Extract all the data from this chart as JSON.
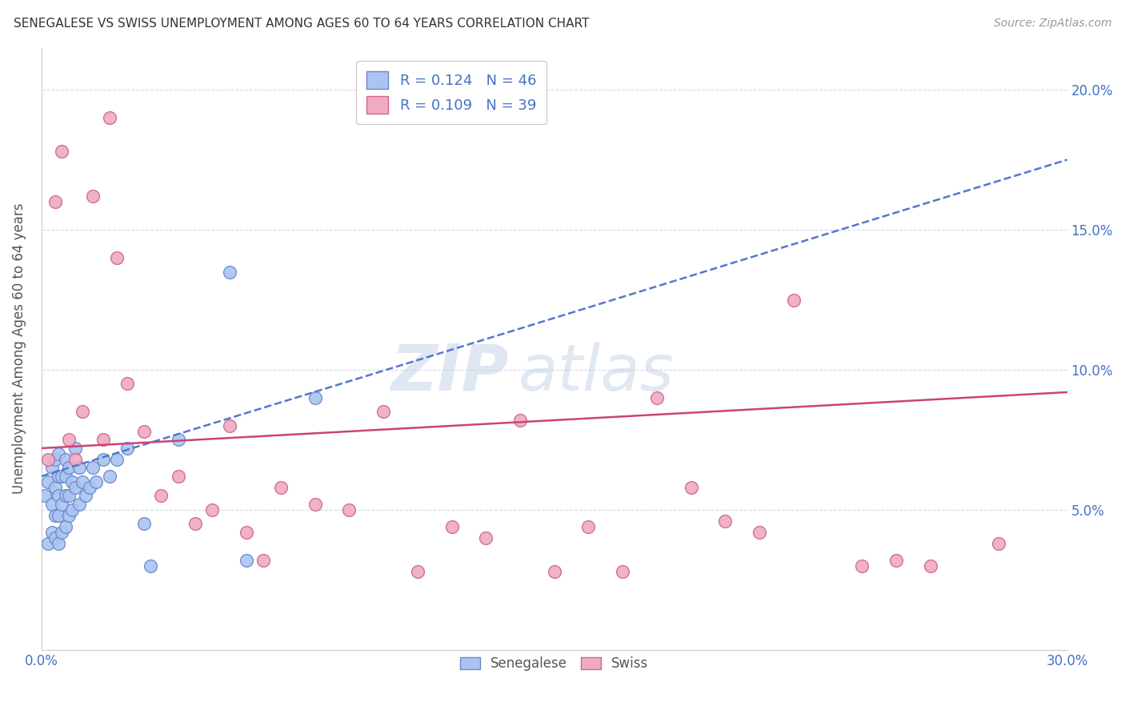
{
  "title": "SENEGALESE VS SWISS UNEMPLOYMENT AMONG AGES 60 TO 64 YEARS CORRELATION CHART",
  "source": "Source: ZipAtlas.com",
  "ylabel": "Unemployment Among Ages 60 to 64 years",
  "xlim": [
    0.0,
    0.3
  ],
  "ylim": [
    0.0,
    0.215
  ],
  "xticks": [
    0.0,
    0.05,
    0.1,
    0.15,
    0.2,
    0.25,
    0.3
  ],
  "yticks": [
    0.0,
    0.05,
    0.1,
    0.15,
    0.2
  ],
  "ytick_labels": [
    "",
    "5.0%",
    "10.0%",
    "15.0%",
    "20.0%"
  ],
  "xtick_labels": [
    "0.0%",
    "",
    "",
    "",
    "",
    "",
    "30.0%"
  ],
  "background_color": "#ffffff",
  "grid_color": "#d8d8e8",
  "senegalese_color": "#aac4f0",
  "swiss_color": "#f0aac4",
  "senegalese_edge": "#6888cc",
  "swiss_edge": "#cc6688",
  "trend_senegalese_color": "#5577cc",
  "trend_swiss_color": "#cc4477",
  "right_ytick_color": "#4472c4",
  "R_senegalese": 0.124,
  "N_senegalese": 46,
  "R_swiss": 0.109,
  "N_swiss": 39,
  "senegalese_x": [
    0.001,
    0.002,
    0.002,
    0.003,
    0.003,
    0.003,
    0.004,
    0.004,
    0.004,
    0.004,
    0.005,
    0.005,
    0.005,
    0.005,
    0.005,
    0.006,
    0.006,
    0.006,
    0.007,
    0.007,
    0.007,
    0.007,
    0.008,
    0.008,
    0.008,
    0.009,
    0.009,
    0.01,
    0.01,
    0.011,
    0.011,
    0.012,
    0.013,
    0.014,
    0.015,
    0.016,
    0.018,
    0.02,
    0.022,
    0.025,
    0.03,
    0.032,
    0.04,
    0.055,
    0.06,
    0.08
  ],
  "senegalese_y": [
    0.055,
    0.038,
    0.06,
    0.042,
    0.052,
    0.065,
    0.04,
    0.048,
    0.058,
    0.068,
    0.038,
    0.048,
    0.055,
    0.062,
    0.07,
    0.042,
    0.052,
    0.062,
    0.044,
    0.055,
    0.062,
    0.068,
    0.048,
    0.055,
    0.065,
    0.05,
    0.06,
    0.058,
    0.072,
    0.052,
    0.065,
    0.06,
    0.055,
    0.058,
    0.065,
    0.06,
    0.068,
    0.062,
    0.068,
    0.072,
    0.045,
    0.03,
    0.075,
    0.135,
    0.032,
    0.09
  ],
  "swiss_x": [
    0.002,
    0.004,
    0.006,
    0.008,
    0.01,
    0.012,
    0.015,
    0.018,
    0.02,
    0.022,
    0.025,
    0.03,
    0.035,
    0.04,
    0.045,
    0.05,
    0.055,
    0.06,
    0.065,
    0.07,
    0.08,
    0.09,
    0.1,
    0.11,
    0.12,
    0.13,
    0.14,
    0.15,
    0.16,
    0.17,
    0.18,
    0.19,
    0.2,
    0.21,
    0.22,
    0.24,
    0.25,
    0.26,
    0.28
  ],
  "swiss_y": [
    0.068,
    0.16,
    0.178,
    0.075,
    0.068,
    0.085,
    0.162,
    0.075,
    0.19,
    0.14,
    0.095,
    0.078,
    0.055,
    0.062,
    0.045,
    0.05,
    0.08,
    0.042,
    0.032,
    0.058,
    0.052,
    0.05,
    0.085,
    0.028,
    0.044,
    0.04,
    0.082,
    0.028,
    0.044,
    0.028,
    0.09,
    0.058,
    0.046,
    0.042,
    0.125,
    0.03,
    0.032,
    0.03,
    0.038
  ],
  "trend_sen_start_y": 0.062,
  "trend_sen_end_y": 0.175,
  "trend_swi_start_y": 0.072,
  "trend_swi_end_y": 0.092
}
